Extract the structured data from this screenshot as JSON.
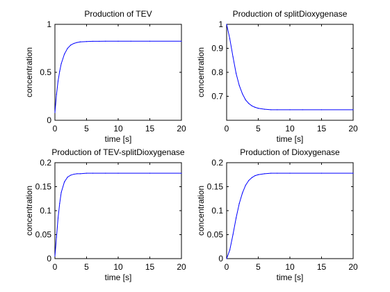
{
  "figure": {
    "background": "#ffffff",
    "axis_color": "#000000"
  },
  "chart_data": [
    {
      "type": "line",
      "title": "Production of TEV",
      "xlabel": "time [s]",
      "ylabel": "concentration",
      "xlim": [
        0,
        20
      ],
      "ylim": [
        0,
        1
      ],
      "xticks": [
        0,
        5,
        10,
        15,
        20
      ],
      "xtick_labels": [
        "0",
        "5",
        "10",
        "15",
        "20"
      ],
      "yticks": [
        0,
        0.5,
        1
      ],
      "ytick_labels": [
        "0",
        "0.5",
        "1"
      ],
      "grid": false,
      "series": [
        {
          "color": "#0000ff",
          "x": [
            0,
            0.25,
            0.5,
            0.75,
            1,
            1.5,
            2,
            2.5,
            3,
            3.5,
            4,
            5,
            6,
            7,
            8,
            10,
            12,
            15,
            20
          ],
          "y": [
            0.08,
            0.27,
            0.41,
            0.51,
            0.59,
            0.69,
            0.75,
            0.784,
            0.801,
            0.811,
            0.817,
            0.821,
            0.823,
            0.823,
            0.824,
            0.824,
            0.824,
            0.824,
            0.824
          ]
        }
      ]
    },
    {
      "type": "line",
      "title": "Production of splitDioxygenase",
      "xlabel": "time [s]",
      "ylabel": "concentration",
      "xlim": [
        0,
        20
      ],
      "ylim": [
        0.6,
        1
      ],
      "xticks": [
        0,
        5,
        10,
        15,
        20
      ],
      "xtick_labels": [
        "0",
        "5",
        "10",
        "15",
        "20"
      ],
      "yticks": [
        0.7,
        0.8,
        0.9,
        1
      ],
      "ytick_labels": [
        "0.7",
        "0.8",
        "0.9",
        "1"
      ],
      "grid": false,
      "series": [
        {
          "color": "#0000ff",
          "x": [
            0,
            0.5,
            1,
            1.5,
            2,
            2.5,
            3,
            3.5,
            4,
            4.5,
            5,
            6,
            7,
            8,
            10,
            12,
            15,
            20
          ],
          "y": [
            1.0,
            0.94,
            0.865,
            0.795,
            0.745,
            0.71,
            0.685,
            0.67,
            0.66,
            0.654,
            0.65,
            0.646,
            0.644,
            0.644,
            0.644,
            0.644,
            0.644,
            0.644
          ]
        }
      ]
    },
    {
      "type": "line",
      "title": "Production of TEV-splitDioxygenase",
      "xlabel": "time [s]",
      "ylabel": "concentration",
      "xlim": [
        0,
        20
      ],
      "ylim": [
        0,
        0.2
      ],
      "xticks": [
        0,
        5,
        10,
        15,
        20
      ],
      "xtick_labels": [
        "0",
        "5",
        "10",
        "15",
        "20"
      ],
      "yticks": [
        0,
        0.05,
        0.1,
        0.15,
        0.2
      ],
      "ytick_labels": [
        "0",
        "0.05",
        "0.1",
        "0.15",
        "0.2"
      ],
      "grid": false,
      "series": [
        {
          "color": "#0000ff",
          "x": [
            0,
            0.25,
            0.5,
            0.75,
            1,
            1.5,
            2,
            2.5,
            3,
            3.5,
            4,
            5,
            6,
            8,
            10,
            15,
            20
          ],
          "y": [
            0.005,
            0.045,
            0.085,
            0.115,
            0.138,
            0.16,
            0.17,
            0.174,
            0.176,
            0.177,
            0.177,
            0.178,
            0.178,
            0.178,
            0.178,
            0.178,
            0.178
          ]
        }
      ]
    },
    {
      "type": "line",
      "title": "Production of Dioxygenase",
      "xlabel": "time [s]",
      "ylabel": "concentration",
      "xlim": [
        0,
        20
      ],
      "ylim": [
        0,
        0.2
      ],
      "xticks": [
        0,
        5,
        10,
        15,
        20
      ],
      "xtick_labels": [
        "0",
        "5",
        "10",
        "15",
        "20"
      ],
      "yticks": [
        0,
        0.05,
        0.1,
        0.15,
        0.2
      ],
      "ytick_labels": [
        "0",
        "0.05",
        "0.1",
        "0.15",
        "0.2"
      ],
      "grid": false,
      "series": [
        {
          "color": "#0000ff",
          "x": [
            0,
            0.5,
            1,
            1.5,
            2,
            2.5,
            3,
            3.5,
            4,
            4.5,
            5,
            6,
            7,
            8,
            10,
            15,
            20
          ],
          "y": [
            0.0,
            0.018,
            0.05,
            0.085,
            0.115,
            0.137,
            0.153,
            0.163,
            0.169,
            0.173,
            0.175,
            0.177,
            0.178,
            0.178,
            0.178,
            0.178,
            0.178
          ]
        }
      ]
    }
  ]
}
